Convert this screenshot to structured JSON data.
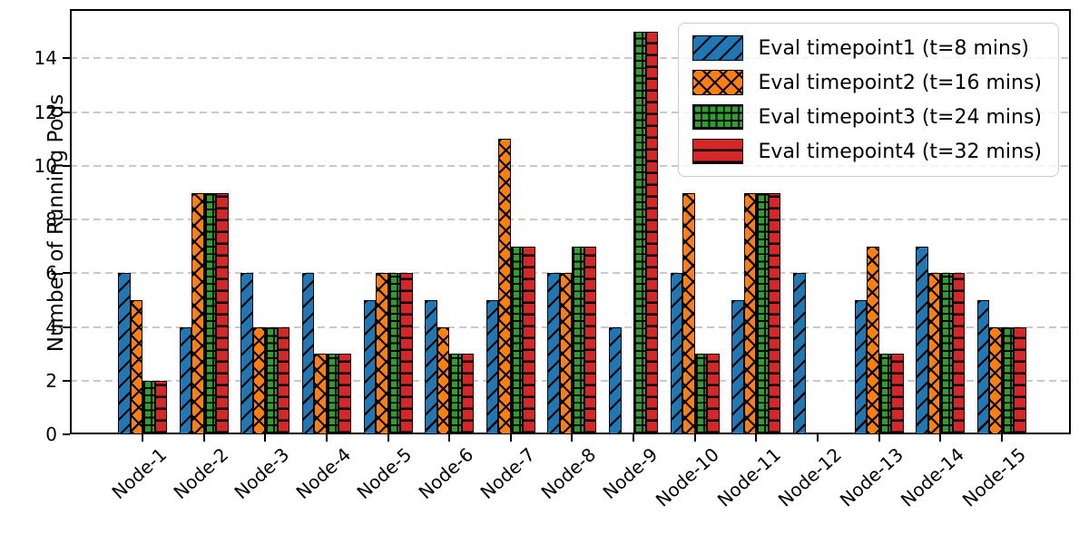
{
  "figure": {
    "background": "#ffffff"
  },
  "chart_data": {
    "type": "bar",
    "title": "",
    "xlabel": "",
    "ylabel": "Number of Running Pods",
    "categories": [
      "Node-1",
      "Node-2",
      "Node-3",
      "Node-4",
      "Node-5",
      "Node-6",
      "Node-7",
      "Node-8",
      "Node-9",
      "Node-10",
      "Node-11",
      "Node-12",
      "Node-13",
      "Node-14",
      "Node-15"
    ],
    "series": [
      {
        "name": "Eval timepoint1 (t=8 mins)",
        "color": "#1f77b4",
        "hatch": "/",
        "values": [
          6,
          4,
          6,
          6,
          5,
          5,
          5,
          6,
          4,
          6,
          5,
          6,
          5,
          7,
          5
        ]
      },
      {
        "name": "Eval timepoint2 (t=16 mins)",
        "color": "#ff7f0e",
        "hatch": "x",
        "values": [
          5,
          9,
          4,
          3,
          6,
          4,
          11,
          6,
          0,
          9,
          9,
          0,
          7,
          6,
          4
        ]
      },
      {
        "name": "Eval timepoint3 (t=24 mins)",
        "color": "#2ca02c",
        "hatch": "+",
        "values": [
          2,
          9,
          4,
          3,
          6,
          3,
          7,
          7,
          15,
          3,
          9,
          0,
          3,
          6,
          4
        ]
      },
      {
        "name": "Eval timepoint4 (t=32 mins)",
        "color": "#d62728",
        "hatch": "-",
        "values": [
          2,
          9,
          4,
          3,
          6,
          3,
          7,
          7,
          15,
          3,
          9,
          0,
          3,
          6,
          4
        ]
      }
    ],
    "yticks": [
      0,
      2,
      4,
      6,
      8,
      10,
      12,
      14
    ],
    "ylim": [
      0,
      15.84
    ],
    "grid": "horizontal-dashed",
    "grid_color": "#c9c9c9",
    "legend_position": "upper-right",
    "edge_color": "#000000"
  }
}
